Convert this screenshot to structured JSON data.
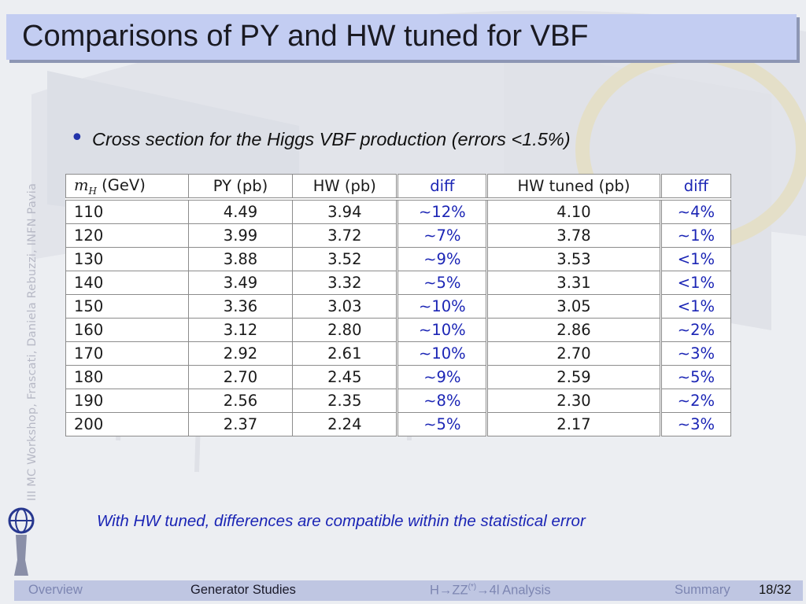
{
  "slide": {
    "title": "Comparisons of PY and HW tuned for VBF",
    "side_label": "III MC Workshop, Frascati, Daniela Rebuzzi, INFN Pavia",
    "bullet": "Cross section for the Higgs VBF production (errors <1.5%)",
    "conclusion": "With HW tuned, differences are compatible within the statistical error"
  },
  "table": {
    "headers": {
      "mh_symbol": "m",
      "mh_sub": "H",
      "mh_unit": " (GeV)",
      "py": "PY (pb)",
      "hw": "HW (pb)",
      "diff1": "diff",
      "hw_tuned": "HW tuned (pb)",
      "diff2": "diff"
    },
    "rows": [
      {
        "mh": "110",
        "py": "4.49",
        "hw": "3.94",
        "diff1": "∼12%",
        "hwt": "4.10",
        "diff2": "∼4%"
      },
      {
        "mh": "120",
        "py": "3.99",
        "hw": "3.72",
        "diff1": "∼7%",
        "hwt": "3.78",
        "diff2": "∼1%"
      },
      {
        "mh": "130",
        "py": "3.88",
        "hw": "3.52",
        "diff1": "∼9%",
        "hwt": "3.53",
        "diff2": "<1%"
      },
      {
        "mh": "140",
        "py": "3.49",
        "hw": "3.32",
        "diff1": "∼5%",
        "hwt": "3.31",
        "diff2": "<1%"
      },
      {
        "mh": "150",
        "py": "3.36",
        "hw": "3.03",
        "diff1": "∼10%",
        "hwt": "3.05",
        "diff2": "<1%"
      },
      {
        "mh": "160",
        "py": "3.12",
        "hw": "2.80",
        "diff1": "∼10%",
        "hwt": "2.86",
        "diff2": "∼2%"
      },
      {
        "mh": "170",
        "py": "2.92",
        "hw": "2.61",
        "diff1": "∼10%",
        "hwt": "2.70",
        "diff2": "∼3%"
      },
      {
        "mh": "180",
        "py": "2.70",
        "hw": "2.45",
        "diff1": "∼9%",
        "hwt": "2.59",
        "diff2": "∼5%"
      },
      {
        "mh": "190",
        "py": "2.56",
        "hw": "2.35",
        "diff1": "∼8%",
        "hwt": "2.30",
        "diff2": "∼2%"
      },
      {
        "mh": "200",
        "py": "2.37",
        "hw": "2.24",
        "diff1": "∼5%",
        "hwt": "2.17",
        "diff2": "∼3%"
      }
    ]
  },
  "footer": {
    "overview": "Overview",
    "generator": "Generator Studies",
    "analysis_pre": "H→ZZ",
    "analysis_sup": "(*)",
    "analysis_post": "→4l Analysis",
    "summary": "Summary",
    "page": "18/32"
  },
  "colors": {
    "title_bar": "#c3cdf2",
    "accent_blue": "#1b25b5",
    "footer_bar": "#bfc6e2"
  }
}
